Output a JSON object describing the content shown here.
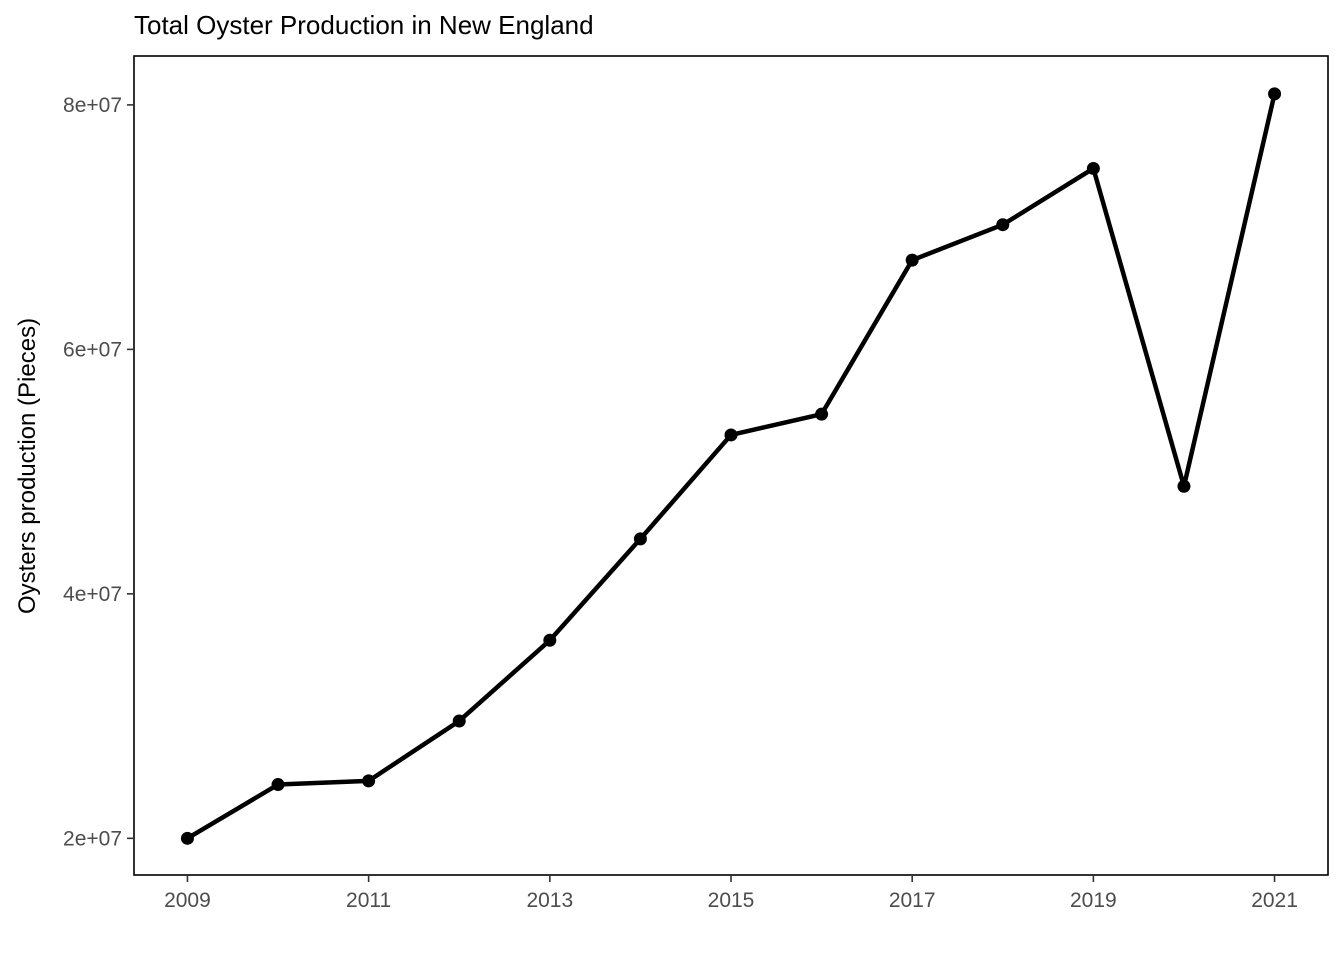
{
  "chart_data": {
    "type": "line",
    "title": "Total Oyster Production in New England",
    "xlabel": "",
    "ylabel": "Oysters production (Pieces)",
    "x": [
      2009,
      2010,
      2011,
      2012,
      2013,
      2014,
      2015,
      2016,
      2017,
      2018,
      2019,
      2020,
      2021
    ],
    "series": [
      {
        "values": [
          20000000,
          24400000,
          24700000,
          29600000,
          36200000,
          44500000,
          53000000,
          54700000,
          67300000,
          70200000,
          74800000,
          48800000,
          80900000
        ]
      }
    ],
    "xlim": [
      2008.41,
      2021.59
    ],
    "ylim": [
      17000000,
      84000000
    ],
    "x_ticks": [
      2009,
      2011,
      2013,
      2015,
      2017,
      2019,
      2021
    ],
    "y_ticks": [
      20000000,
      40000000,
      60000000,
      80000000
    ],
    "x_tick_labels": [
      "2009",
      "2011",
      "2013",
      "2015",
      "2017",
      "2019",
      "2021"
    ],
    "y_tick_labels": [
      "2e+07",
      "4e+07",
      "6e+07",
      "8e+07"
    ],
    "grid": false,
    "legend": "none",
    "line_color": "#000000",
    "panel_border_color": "#000000"
  }
}
